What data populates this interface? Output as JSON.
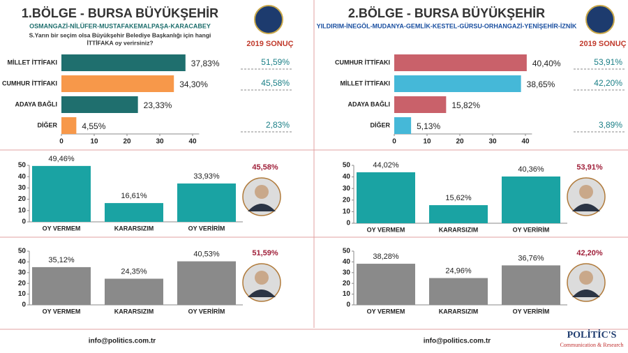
{
  "chart_data": [
    {
      "type": "hbar",
      "title": "1.BÖLGE - BURSA BÜYÜKŞEHİR",
      "subtitle": "OSMANGAZİ-NİLÜFER-MUSTAFAKEMALPAŞA-KARACABEY",
      "question": [
        "S.Yarın bir seçim olsa Büyükşehir Belediye Başkanlığı için hangi",
        "İTTİFAKA oy  verirsiniz?"
      ],
      "categories": [
        "MİLLET İTTİFAKI",
        "CUMHUR İTTİFAKI",
        "ADAYA BAĞLI",
        "DİĞER"
      ],
      "values": [
        37.83,
        34.3,
        23.33,
        4.55
      ],
      "value_labels": [
        "37,83%",
        "34,30%",
        "23,33%",
        "4,55%"
      ],
      "colors": [
        "#1f6f6e",
        "#f7984a",
        "#1f6f6e",
        "#f7984a"
      ],
      "xlim": [
        0,
        42
      ],
      "xticks": [
        0,
        10,
        20,
        30,
        40
      ],
      "results_title": "2019 SONUÇ",
      "results": [
        51.59,
        45.58,
        null,
        2.83
      ],
      "results_labels": [
        "51,59%",
        "45,58%",
        null,
        "2,83%"
      ]
    },
    {
      "type": "hbar",
      "title": "2.BÖLGE - BURSA BÜYÜKŞEHİR",
      "subtitle": "YILDIRIM-İNEGÖL-MUDANYA-GEMLİK-KESTEL-GÜRSU-ORHANGAZİ-YENİŞEHİR-İZNİK",
      "categories": [
        "CUMHUR İTTİFAKI",
        "MİLLET İTTİFAKI",
        "ADAYA BAĞLI",
        "DİĞER"
      ],
      "values": [
        40.4,
        38.65,
        15.82,
        5.13
      ],
      "value_labels": [
        "40,40%",
        "38,65%",
        "15,82%",
        "5,13%"
      ],
      "colors": [
        "#c9616a",
        "#45b8d8",
        "#c9616a",
        "#45b8d8"
      ],
      "xlim": [
        0,
        42
      ],
      "xticks": [
        0,
        10,
        20,
        30,
        40
      ],
      "results_title": "2019 SONUÇ",
      "results": [
        53.91,
        42.2,
        null,
        3.89
      ],
      "results_labels": [
        "53,91%",
        "42,20%",
        null,
        "3,89%"
      ]
    },
    {
      "type": "column",
      "categories": [
        "OY VERMEM",
        "KARARSIZIM",
        "OY VERİRİM"
      ],
      "values": [
        49.46,
        16.61,
        33.93
      ],
      "value_labels": [
        "49,46%",
        "16,61%",
        "33,93%"
      ],
      "color": "#1aa3a3",
      "ylim": [
        0,
        50
      ],
      "yticks": [
        0,
        10,
        20,
        30,
        40,
        50
      ],
      "annotation": "45,58%"
    },
    {
      "type": "column",
      "categories": [
        "OY VERMEM",
        "KARARSIZIM",
        "OY VERİRİM"
      ],
      "values": [
        44.02,
        15.62,
        40.36
      ],
      "value_labels": [
        "44,02%",
        "15,62%",
        "40,36%"
      ],
      "color": "#1aa3a3",
      "ylim": [
        0,
        50
      ],
      "yticks": [
        0,
        10,
        20,
        30,
        40,
        50
      ],
      "annotation": "53,91%"
    },
    {
      "type": "column",
      "categories": [
        "OY VERMEM",
        "KARARSIZIM",
        "OY VERİRİM"
      ],
      "values": [
        35.12,
        24.35,
        40.53
      ],
      "value_labels": [
        "35,12%",
        "24,35%",
        "40,53%"
      ],
      "color": "#8a8a8a",
      "ylim": [
        0,
        50
      ],
      "yticks": [
        0,
        10,
        20,
        30,
        40,
        50
      ],
      "annotation": "51,59%"
    },
    {
      "type": "column",
      "categories": [
        "OY VERMEM",
        "KARARSIZIM",
        "OY VERİRİM"
      ],
      "values": [
        38.28,
        24.96,
        36.76
      ],
      "value_labels": [
        "38,28%",
        "24,96%",
        "36,76%"
      ],
      "color": "#8a8a8a",
      "ylim": [
        0,
        50
      ],
      "yticks": [
        0,
        10,
        20,
        30,
        40,
        50
      ],
      "annotation": "42,20%"
    }
  ],
  "footer": {
    "email": "info@politics.com.tr",
    "logo": "POLİTİC'S",
    "logo_sub": "Communication & Research"
  }
}
